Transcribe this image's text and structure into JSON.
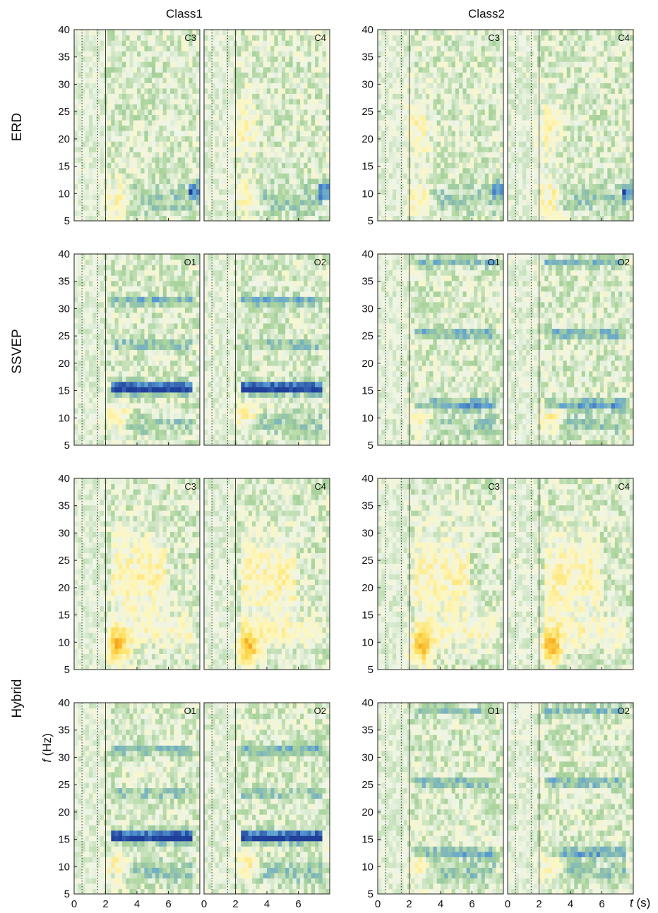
{
  "chart_data": {
    "type": "heatmap",
    "description_panels": "4 rows x 2 classes x 2 channels time-frequency maps",
    "colormap": {
      "strong_negative": "#1f3f9a",
      "negative": "#5b9fd6",
      "weak_negative": "#a9d39a",
      "neutral": "#eef5e8",
      "weak_positive": "#fff6b8",
      "positive": "#fddc55",
      "strong_positive": "#f7a21b"
    },
    "columns": [
      "Class1",
      "Class2"
    ],
    "rows": [
      {
        "label": "ERD",
        "channels": [
          "C3",
          "C4"
        ]
      },
      {
        "label": "SSVEP",
        "channels": [
          "O1",
          "O2"
        ]
      },
      {
        "label": "",
        "channels": [
          "C3",
          "C4"
        ]
      },
      {
        "label": "Hybrid",
        "channels": [
          "O1",
          "O2"
        ]
      }
    ],
    "x_ticks": [
      "0",
      "2",
      "4",
      "6"
    ],
    "xlim": [
      0,
      8
    ],
    "y_ticks": [
      "5",
      "10",
      "15",
      "20",
      "25",
      "30",
      "35",
      "40"
    ],
    "ylim": [
      5,
      40
    ],
    "xlabel_var": "t",
    "xlabel_unit": " (s)",
    "ylabel_var": "f",
    "ylabel_unit": " (Hz)",
    "event_lines": {
      "dotted_s": [
        0.5,
        1.5
      ],
      "solid_s": [
        2
      ]
    }
  }
}
